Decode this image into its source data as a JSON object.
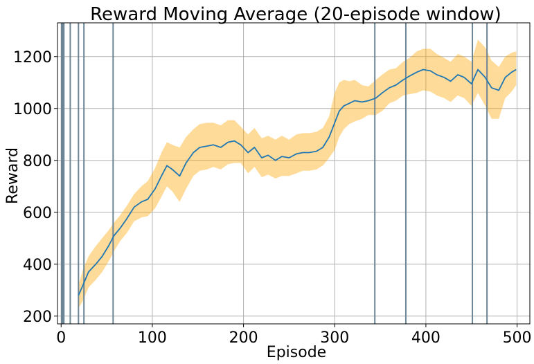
{
  "chart_data": {
    "type": "line",
    "title": "Reward Moving Average (20-episode window)",
    "xlabel": "Episode",
    "ylabel": "Reward",
    "xlim": [
      -4,
      514
    ],
    "ylim": [
      170,
      1330
    ],
    "xticks": [
      0,
      100,
      200,
      300,
      400,
      500
    ],
    "yticks": [
      200,
      400,
      600,
      800,
      1000,
      1200
    ],
    "grid": true,
    "series": [
      {
        "kind": "moving_average",
        "color": "#1f77b4",
        "x": [
          19,
          24,
          30,
          38,
          45,
          52,
          58,
          65,
          72,
          80,
          88,
          95,
          103,
          110,
          116,
          122,
          130,
          137,
          145,
          152,
          160,
          167,
          175,
          183,
          190,
          197,
          205,
          212,
          220,
          227,
          235,
          242,
          250,
          258,
          265,
          272,
          280,
          287,
          294,
          300,
          305,
          310,
          316,
          322,
          330,
          337,
          345,
          352,
          360,
          367,
          375,
          382,
          390,
          397,
          405,
          412,
          420,
          427,
          435,
          442,
          450,
          457,
          465,
          472,
          480,
          487,
          494,
          499
        ],
        "y": [
          280,
          320,
          370,
          400,
          430,
          470,
          510,
          540,
          575,
          620,
          640,
          650,
          690,
          740,
          780,
          765,
          740,
          790,
          830,
          850,
          855,
          860,
          850,
          870,
          875,
          860,
          830,
          850,
          810,
          820,
          800,
          815,
          810,
          825,
          830,
          830,
          835,
          850,
          890,
          945,
          990,
          1010,
          1020,
          1030,
          1025,
          1030,
          1040,
          1060,
          1080,
          1090,
          1110,
          1125,
          1140,
          1150,
          1145,
          1130,
          1120,
          1105,
          1130,
          1120,
          1095,
          1150,
          1120,
          1080,
          1070,
          1120,
          1140,
          1150
        ]
      },
      {
        "kind": "band_upper",
        "color": "#ffa500",
        "x": [
          19,
          24,
          30,
          38,
          45,
          52,
          58,
          65,
          72,
          80,
          88,
          95,
          103,
          110,
          116,
          122,
          130,
          137,
          145,
          152,
          160,
          167,
          175,
          183,
          190,
          197,
          205,
          212,
          220,
          227,
          235,
          242,
          250,
          258,
          265,
          272,
          280,
          287,
          294,
          300,
          305,
          310,
          316,
          322,
          330,
          337,
          345,
          352,
          360,
          367,
          375,
          382,
          390,
          397,
          405,
          412,
          420,
          427,
          435,
          442,
          450,
          457,
          465,
          472,
          480,
          487,
          494,
          499
        ],
        "y": [
          320,
          380,
          430,
          470,
          500,
          530,
          560,
          590,
          625,
          670,
          700,
          720,
          770,
          830,
          870,
          860,
          850,
          890,
          920,
          940,
          945,
          945,
          935,
          955,
          955,
          930,
          900,
          925,
          885,
          895,
          880,
          895,
          880,
          900,
          905,
          905,
          910,
          925,
          970,
          1060,
          1100,
          1110,
          1105,
          1110,
          1090,
          1085,
          1110,
          1130,
          1150,
          1155,
          1180,
          1195,
          1220,
          1230,
          1230,
          1210,
          1195,
          1180,
          1210,
          1200,
          1180,
          1265,
          1235,
          1185,
          1160,
          1200,
          1215,
          1220
        ]
      },
      {
        "kind": "band_lower",
        "color": "#ffa500",
        "x": [
          19,
          24,
          30,
          38,
          45,
          52,
          58,
          65,
          72,
          80,
          88,
          95,
          103,
          110,
          116,
          122,
          130,
          137,
          145,
          152,
          160,
          167,
          175,
          183,
          190,
          197,
          205,
          212,
          220,
          227,
          235,
          242,
          250,
          258,
          265,
          272,
          280,
          287,
          294,
          300,
          305,
          310,
          316,
          322,
          330,
          337,
          345,
          352,
          360,
          367,
          375,
          382,
          390,
          397,
          405,
          412,
          420,
          427,
          435,
          442,
          450,
          457,
          465,
          472,
          480,
          487,
          494,
          499
        ],
        "y": [
          230,
          260,
          310,
          340,
          370,
          410,
          450,
          490,
          520,
          565,
          580,
          585,
          615,
          660,
          700,
          680,
          640,
          690,
          740,
          760,
          765,
          775,
          765,
          785,
          790,
          790,
          750,
          775,
          735,
          745,
          730,
          740,
          740,
          750,
          760,
          760,
          765,
          780,
          810,
          840,
          890,
          920,
          940,
          950,
          960,
          975,
          975,
          990,
          1020,
          1030,
          1050,
          1055,
          1060,
          1070,
          1065,
          1050,
          1040,
          1025,
          1050,
          1040,
          1010,
          1060,
          1010,
          960,
          960,
          1040,
          1065,
          1090
        ]
      }
    ],
    "vertical_lines": {
      "color": "#6c8595",
      "x": [
        0.5,
        1,
        1.5,
        2,
        2.5,
        3,
        10,
        19,
        25,
        57,
        344,
        378,
        451,
        467
      ]
    }
  }
}
